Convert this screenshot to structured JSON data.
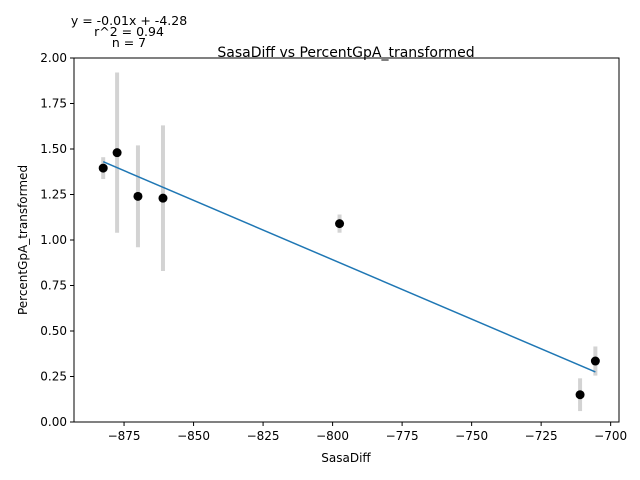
{
  "chart_data": {
    "type": "scatter",
    "title": "SasaDiff vs PercentGpA_transformed",
    "xlabel": "SasaDiff",
    "ylabel": "PercentGpA_transformed",
    "xlim": [
      -893,
      -697
    ],
    "ylim": [
      0,
      2.0
    ],
    "xticks": [
      -875,
      -850,
      -825,
      -800,
      -775,
      -750,
      -725,
      -700
    ],
    "xtick_labels": [
      "−875",
      "−850",
      "−825",
      "−800",
      "−775",
      "−750",
      "−725",
      "−700"
    ],
    "yticks": [
      0.0,
      0.25,
      0.5,
      0.75,
      1.0,
      1.25,
      1.5,
      1.75,
      2.0
    ],
    "ytick_labels": [
      "0.00",
      "0.25",
      "0.50",
      "0.75",
      "1.00",
      "1.25",
      "1.50",
      "1.75",
      "2.00"
    ],
    "grid": false,
    "points": [
      {
        "x": -882.5,
        "y": 1.395,
        "err": 0.06
      },
      {
        "x": -877.5,
        "y": 1.48,
        "err": 0.44
      },
      {
        "x": -870.0,
        "y": 1.24,
        "err": 0.28
      },
      {
        "x": -861.0,
        "y": 1.23,
        "err": 0.4
      },
      {
        "x": -797.5,
        "y": 1.09,
        "err": 0.05
      },
      {
        "x": -711.0,
        "y": 0.15,
        "err": 0.09
      },
      {
        "x": -705.5,
        "y": 0.335,
        "err": 0.08
      }
    ],
    "fit_line": {
      "x": [
        -882.5,
        -705.5
      ],
      "y": [
        1.43,
        0.275
      ]
    },
    "annotations": [
      "y = -0.01x + -4.28",
      "r^2 = 0.94",
      "n = 7"
    ],
    "colors": {
      "points": "#000000",
      "errorbars": "#d3d3d3",
      "fit": "#1f77b4"
    }
  }
}
